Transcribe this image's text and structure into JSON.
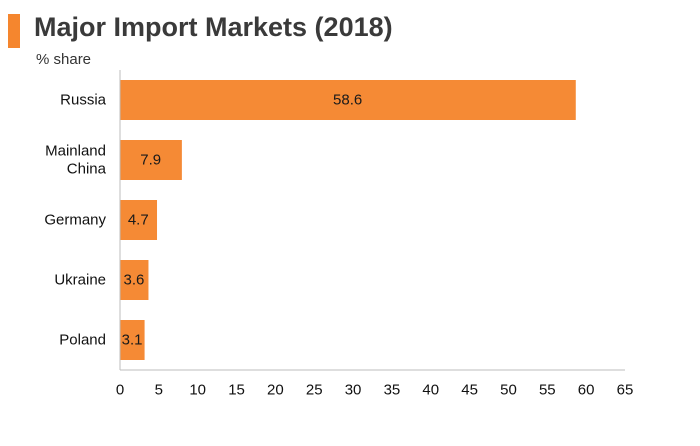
{
  "header": {
    "title": "Major Import Markets (2018)",
    "subtitle": "% share",
    "accent_color": "#f5862e"
  },
  "chart_data": {
    "type": "bar",
    "orientation": "horizontal",
    "categories": [
      [
        "Russia"
      ],
      [
        "Mainland",
        "China"
      ],
      [
        "Germany"
      ],
      [
        "Ukraine"
      ],
      [
        "Poland"
      ]
    ],
    "values": [
      58.6,
      7.9,
      4.7,
      3.6,
      3.1
    ],
    "data_labels": [
      "58.6",
      "7.9",
      "4.7",
      "3.6",
      "3.1"
    ],
    "bar_color": "#f58a35",
    "xlim": [
      0,
      65
    ],
    "xticks": [
      0,
      5,
      10,
      15,
      20,
      25,
      30,
      35,
      40,
      45,
      50,
      55,
      60,
      65
    ],
    "xlabel": "",
    "ylabel": "",
    "grid": false,
    "legend": "none"
  }
}
